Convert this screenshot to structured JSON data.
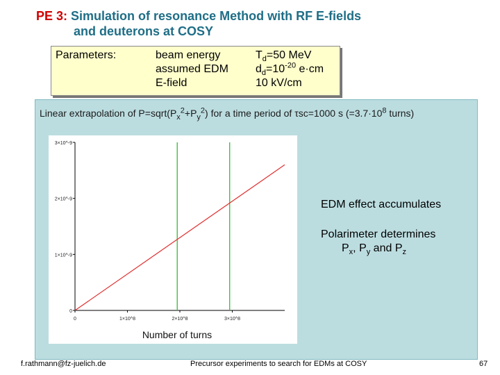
{
  "title": {
    "prefix": "PE 3:",
    "line1": "Simulation of resonance Method with RF E-fields",
    "line2": "and deuterons at  COSY"
  },
  "parameters": {
    "label": "Parameters:",
    "names": [
      "beam energy",
      "assumed EDM",
      "E-field"
    ],
    "energy_prefix": "T",
    "energy_sub": "d",
    "energy_value": "=50 MeV",
    "edm_prefix": "d",
    "edm_sub": "d",
    "edm_value": "=10",
    "edm_exp": "-20",
    "edm_unit": " e·cm",
    "field_value": "10 kV/cm"
  },
  "caption": {
    "part1": "Linear extrapolation of P=sqrt(P",
    "sub1": "x",
    "sup1": "2",
    "part2": "+P",
    "sub2": "y",
    "sup2": "2",
    "part3": ") for a time period of ",
    "tau": "τ",
    "part4": "sc=1000 s (=3.7·10",
    "sup3": "8",
    "part5": " turns)"
  },
  "chart_data": {
    "type": "line",
    "xlabel": "Number of turns",
    "ylabel": "",
    "xlim": [
      0,
      400000000.0
    ],
    "ylim": [
      0,
      3e-09
    ],
    "x_ticks": [
      "0",
      "1×10^8",
      "2×10^8",
      "3×10^8"
    ],
    "y_ticks": [
      "0",
      "1×10^-9",
      "2×10^-9",
      "3×10^-9"
    ],
    "series": [
      {
        "x": [
          0,
          400000000.0
        ],
        "y": [
          0,
          2.6e-09
        ],
        "color": "#e03030"
      }
    ],
    "vlines": [
      {
        "x": 195000000.0,
        "color": "#33bb33"
      },
      {
        "x": 295000000.0,
        "color": "#33bb33"
      }
    ]
  },
  "annotations": {
    "accumulates": "EDM effect accumulates",
    "polarimeter": "Polarimeter determines",
    "comps_prefix": "P",
    "px_sub": "x",
    "sep1": ", P",
    "py_sub": "y",
    "sep2": " and P",
    "pz_sub": "z"
  },
  "footer": {
    "email": "f.rathmann@fz-juelich.de",
    "center": "Precursor experiments to search for EDMs at COSY",
    "page": "67"
  }
}
